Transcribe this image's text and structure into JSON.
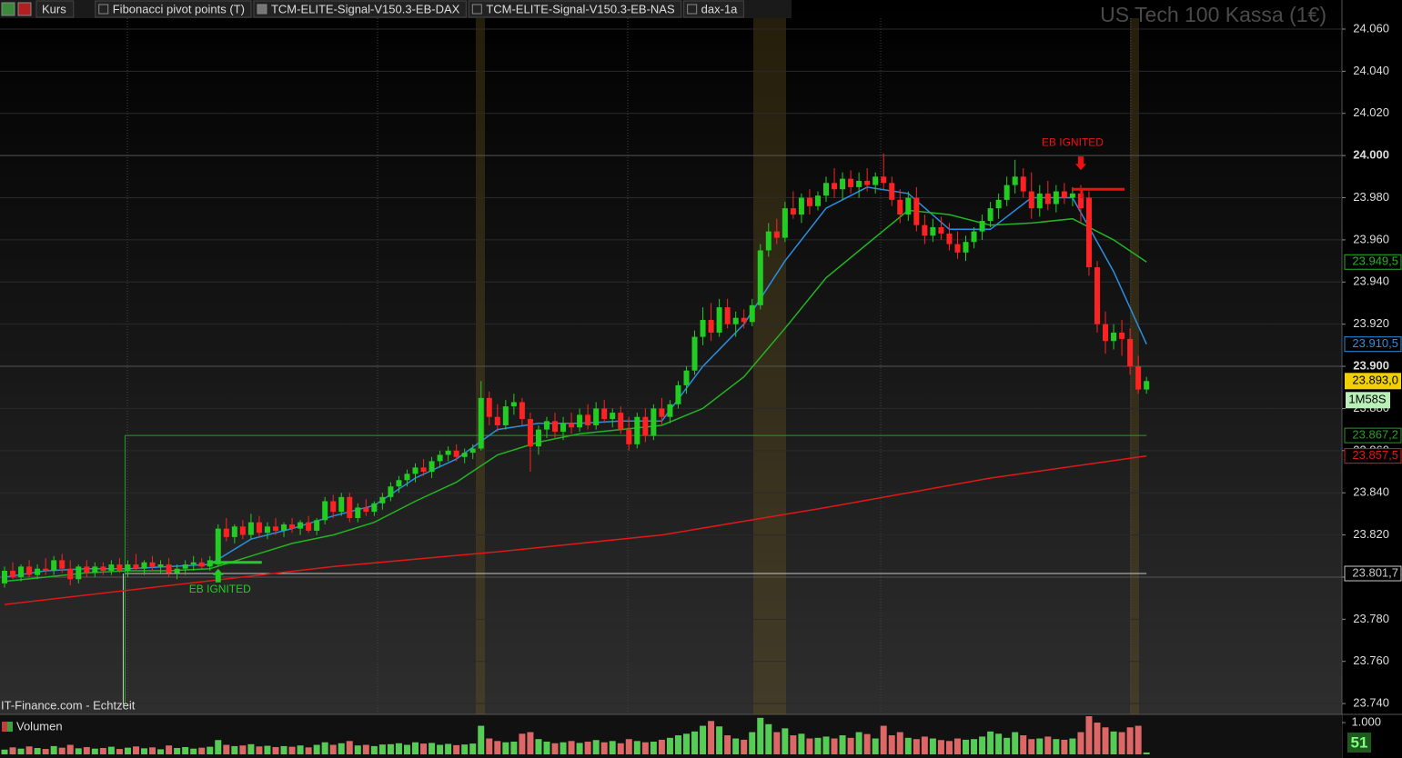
{
  "chart_data": {
    "type": "candlestick",
    "title": "US Tech 100 Kassa (1€)",
    "source": "IT-Finance.com - Echtzeit",
    "toolbar": [
      "Kurs",
      "Fibonacci pivot points (T)",
      "TCM-ELITE-Signal-V150.3-EB-DAX",
      "TCM-ELITE-Signal-V150.3-EB-NAS",
      "dax-1a"
    ],
    "ylim": [
      23735.3,
      24073.8
    ],
    "yticks": [
      {
        "value": 23740,
        "label": "23.740"
      },
      {
        "value": 23760,
        "label": "23.760"
      },
      {
        "value": 23780,
        "label": "23.780"
      },
      {
        "value": 23800,
        "label": "23.800"
      },
      {
        "value": 23820,
        "label": "23.820"
      },
      {
        "value": 23840,
        "label": "23.840"
      },
      {
        "value": 23860,
        "label": "23.860"
      },
      {
        "value": 23880,
        "label": "23.880"
      },
      {
        "value": 23900,
        "label": "23.900"
      },
      {
        "value": 23920,
        "label": "23.920"
      },
      {
        "value": 23940,
        "label": "23.940"
      },
      {
        "value": 23960,
        "label": "23.960"
      },
      {
        "value": 23980,
        "label": "23.980"
      },
      {
        "value": 24000,
        "label": "24.000"
      },
      {
        "value": 24020,
        "label": "24.020"
      },
      {
        "value": 24040,
        "label": "24.040"
      },
      {
        "value": 24060,
        "label": "24.060"
      }
    ],
    "up_color": "#22cc22",
    "down_color": "#ff2222",
    "last_label": "23.893,0",
    "countdown": "1M58S",
    "candles": [
      [
        23797,
        23805,
        23795,
        23803
      ],
      [
        23803,
        23807,
        23799,
        23800
      ],
      [
        23800,
        23806,
        23798,
        23805
      ],
      [
        23805,
        23808,
        23800,
        23801
      ],
      [
        23801,
        23806,
        23799,
        23804
      ],
      [
        23804,
        23809,
        23801,
        23803
      ],
      [
        23803,
        23810,
        23801,
        23808
      ],
      [
        23808,
        23811,
        23802,
        23804
      ],
      [
        23804,
        23808,
        23796,
        23799
      ],
      [
        23799,
        23806,
        23797,
        23805
      ],
      [
        23805,
        23808,
        23800,
        23802
      ],
      [
        23802,
        23807,
        23800,
        23805
      ],
      [
        23805,
        23807,
        23801,
        23803
      ],
      [
        23803,
        23808,
        23801,
        23806
      ],
      [
        23806,
        23809,
        23802,
        23803
      ],
      [
        23803,
        23808,
        23800,
        23806
      ],
      [
        23806,
        23811,
        23803,
        23804
      ],
      [
        23804,
        23808,
        23801,
        23807
      ],
      [
        23807,
        23810,
        23803,
        23805
      ],
      [
        23805,
        23808,
        23802,
        23806
      ],
      [
        23806,
        23809,
        23800,
        23802
      ],
      [
        23802,
        23806,
        23799,
        23804
      ],
      [
        23804,
        23808,
        23801,
        23806
      ],
      [
        23806,
        23810,
        23803,
        23807
      ],
      [
        23807,
        23809,
        23804,
        23805
      ],
      [
        23805,
        23810,
        23803,
        23808
      ],
      [
        23806,
        23825,
        23805,
        23823
      ],
      [
        23823,
        23828,
        23817,
        23819
      ],
      [
        23819,
        23825,
        23816,
        23824
      ],
      [
        23824,
        23827,
        23818,
        23820
      ],
      [
        23820,
        23830,
        23818,
        23826
      ],
      [
        23826,
        23829,
        23819,
        23821
      ],
      [
        23821,
        23826,
        23818,
        23824
      ],
      [
        23824,
        23828,
        23820,
        23822
      ],
      [
        23822,
        23826,
        23819,
        23825
      ],
      [
        23825,
        23828,
        23821,
        23823
      ],
      [
        23823,
        23827,
        23820,
        23826
      ],
      [
        23826,
        23829,
        23821,
        23822
      ],
      [
        23822,
        23828,
        23820,
        23827
      ],
      [
        23827,
        23838,
        23825,
        23836
      ],
      [
        23836,
        23839,
        23828,
        23831
      ],
      [
        23831,
        23840,
        23829,
        23838
      ],
      [
        23838,
        23840,
        23826,
        23828
      ],
      [
        23828,
        23835,
        23826,
        23833
      ],
      [
        23833,
        23837,
        23829,
        23831
      ],
      [
        23831,
        23836,
        23829,
        23835
      ],
      [
        23835,
        23840,
        23832,
        23838
      ],
      [
        23838,
        23845,
        23836,
        23843
      ],
      [
        23843,
        23848,
        23840,
        23846
      ],
      [
        23846,
        23851,
        23843,
        23849
      ],
      [
        23849,
        23854,
        23845,
        23852
      ],
      [
        23852,
        23856,
        23848,
        23850
      ],
      [
        23850,
        23857,
        23847,
        23855
      ],
      [
        23855,
        23860,
        23852,
        23858
      ],
      [
        23858,
        23862,
        23855,
        23860
      ],
      [
        23860,
        23863,
        23855,
        23857
      ],
      [
        23857,
        23861,
        23854,
        23859
      ],
      [
        23859,
        23863,
        23856,
        23861
      ],
      [
        23861,
        23893,
        23860,
        23885
      ],
      [
        23885,
        23888,
        23872,
        23876
      ],
      [
        23876,
        23882,
        23869,
        23872
      ],
      [
        23872,
        23884,
        23870,
        23881
      ],
      [
        23881,
        23887,
        23877,
        23883
      ],
      [
        23883,
        23885,
        23872,
        23875
      ],
      [
        23875,
        23878,
        23850,
        23862
      ],
      [
        23862,
        23872,
        23858,
        23870
      ],
      [
        23870,
        23876,
        23866,
        23874
      ],
      [
        23874,
        23878,
        23866,
        23869
      ],
      [
        23869,
        23876,
        23865,
        23873
      ],
      [
        23873,
        23878,
        23868,
        23871
      ],
      [
        23871,
        23880,
        23869,
        23877
      ],
      [
        23877,
        23882,
        23870,
        23872
      ],
      [
        23872,
        23883,
        23870,
        23880
      ],
      [
        23880,
        23884,
        23873,
        23875
      ],
      [
        23875,
        23880,
        23871,
        23878
      ],
      [
        23878,
        23881,
        23868,
        23870
      ],
      [
        23870,
        23876,
        23860,
        23863
      ],
      [
        23863,
        23878,
        23861,
        23876
      ],
      [
        23876,
        23880,
        23864,
        23867
      ],
      [
        23867,
        23882,
        23865,
        23880
      ],
      [
        23880,
        23885,
        23872,
        23876
      ],
      [
        23876,
        23884,
        23873,
        23882
      ],
      [
        23882,
        23893,
        23880,
        23891
      ],
      [
        23891,
        23900,
        23887,
        23898
      ],
      [
        23898,
        23917,
        23896,
        23914
      ],
      [
        23914,
        23928,
        23910,
        23922
      ],
      [
        23922,
        23930,
        23912,
        23916
      ],
      [
        23916,
        23932,
        23914,
        23928
      ],
      [
        23928,
        23932,
        23918,
        23920
      ],
      [
        23920,
        23926,
        23914,
        23923
      ],
      [
        23923,
        23927,
        23918,
        23921
      ],
      [
        23921,
        23932,
        23919,
        23929
      ],
      [
        23929,
        23958,
        23927,
        23955
      ],
      [
        23955,
        23968,
        23952,
        23964
      ],
      [
        23964,
        23970,
        23958,
        23961
      ],
      [
        23961,
        23978,
        23959,
        23975
      ],
      [
        23975,
        23983,
        23970,
        23972
      ],
      [
        23972,
        23982,
        23968,
        23980
      ],
      [
        23980,
        23984,
        23972,
        23976
      ],
      [
        23976,
        23983,
        23974,
        23981
      ],
      [
        23981,
        23990,
        23978,
        23987
      ],
      [
        23987,
        23994,
        23980,
        23984
      ],
      [
        23984,
        23992,
        23979,
        23989
      ],
      [
        23989,
        23993,
        23982,
        23985
      ],
      [
        23985,
        23992,
        23980,
        23988
      ],
      [
        23988,
        23994,
        23983,
        23986
      ],
      [
        23986,
        23992,
        23982,
        23990
      ],
      [
        23990,
        24001,
        23984,
        23987
      ],
      [
        23987,
        23990,
        23976,
        23979
      ],
      [
        23979,
        23984,
        23968,
        23972
      ],
      [
        23972,
        23983,
        23969,
        23980
      ],
      [
        23980,
        23985,
        23964,
        23967
      ],
      [
        23967,
        23972,
        23958,
        23962
      ],
      [
        23962,
        23970,
        23959,
        23966
      ],
      [
        23966,
        23971,
        23960,
        23963
      ],
      [
        23963,
        23968,
        23955,
        23958
      ],
      [
        23958,
        23964,
        23951,
        23954
      ],
      [
        23954,
        23962,
        23950,
        23959
      ],
      [
        23959,
        23966,
        23956,
        23964
      ],
      [
        23964,
        23972,
        23960,
        23969
      ],
      [
        23969,
        23978,
        23966,
        23975
      ],
      [
        23975,
        23982,
        23970,
        23979
      ],
      [
        23979,
        23990,
        23976,
        23986
      ],
      [
        23986,
        23998,
        23982,
        23990
      ],
      [
        23990,
        23994,
        23980,
        23983
      ],
      [
        23983,
        23992,
        23970,
        23975
      ],
      [
        23975,
        23986,
        23971,
        23982
      ],
      [
        23982,
        23988,
        23974,
        23977
      ],
      [
        23977,
        23986,
        23973,
        23983
      ],
      [
        23983,
        23987,
        23977,
        23980
      ],
      [
        23980,
        23985,
        23976,
        23982
      ],
      [
        23982,
        23986,
        23968,
        23975
      ],
      [
        23980,
        23983,
        23943,
        23947
      ],
      [
        23947,
        23950,
        23916,
        23920
      ],
      [
        23920,
        23926,
        23906,
        23912
      ],
      [
        23912,
        23920,
        23908,
        23916
      ],
      [
        23916,
        23922,
        23905,
        23913
      ],
      [
        23913,
        23918,
        23896,
        23900
      ],
      [
        23900,
        23905,
        23887,
        23889
      ],
      [
        23889,
        23895,
        23887,
        23893
      ]
    ],
    "series": [
      {
        "color": "#2a8fe0",
        "end_label": "23.910,5",
        "x": [
          0,
          5,
          10,
          15,
          20,
          25,
          30,
          35,
          40,
          45,
          50,
          55,
          60,
          65,
          70,
          75,
          80,
          85,
          90,
          95,
          100,
          105,
          110,
          115,
          120,
          125,
          130,
          135,
          139
        ],
        "values": [
          23800,
          23803,
          23804,
          23804,
          23805,
          23806,
          23818,
          23823,
          23829,
          23834,
          23847,
          23856,
          23870,
          23873,
          23873,
          23874,
          23874,
          23900,
          23920,
          23950,
          23975,
          23985,
          23982,
          23965,
          23965,
          23980,
          23980,
          23945,
          23910.5
        ]
      },
      {
        "color": "#22b422",
        "end_label": "23.949,5",
        "x": [
          0,
          5,
          10,
          15,
          20,
          25,
          30,
          35,
          40,
          45,
          50,
          55,
          60,
          65,
          70,
          75,
          80,
          85,
          90,
          95,
          100,
          105,
          110,
          115,
          120,
          125,
          130,
          135,
          139
        ],
        "values": [
          23798,
          23800,
          23802,
          23803,
          23803,
          23804,
          23810,
          23816,
          23820,
          23826,
          23836,
          23845,
          23858,
          23864,
          23868,
          23870,
          23872,
          23880,
          23895,
          23918,
          23942,
          23958,
          23974,
          23972,
          23967,
          23968,
          23970,
          23960,
          23949.5
        ]
      },
      {
        "color": "#e01818",
        "end_label": "23.857,5",
        "x": [
          0,
          20,
          40,
          60,
          80,
          100,
          120,
          139
        ],
        "values": [
          23787,
          23796,
          23805,
          23812,
          23820,
          23833,
          23847,
          23857.5
        ]
      }
    ],
    "levels": [
      {
        "value": 23867.2,
        "label": "23.867,2",
        "color": "#22a022",
        "from": 15
      },
      {
        "value": 23801.7,
        "label": "23.801,7",
        "color": "#c8c8c8",
        "from": 15
      }
    ],
    "signals": [
      {
        "text": "EB IGNITED",
        "x": 26,
        "price": 23807,
        "color": "#22cc22",
        "direction": "up"
      },
      {
        "text": "EB IGNITED",
        "x": 131,
        "price": 23984,
        "color": "#ee1111",
        "direction": "down"
      }
    ],
    "volume": {
      "label": "Volumen",
      "badge": "51",
      "ylim": [
        0,
        1230
      ],
      "yticks": [
        {
          "value": 1000,
          "label": "1.000"
        }
      ],
      "values": [
        150,
        220,
        180,
        250,
        200,
        170,
        260,
        210,
        300,
        190,
        230,
        180,
        200,
        240,
        170,
        210,
        250,
        190,
        220,
        160,
        280,
        200,
        230,
        180,
        210,
        240,
        450,
        300,
        260,
        280,
        320,
        250,
        270,
        230,
        260,
        240,
        280,
        220,
        300,
        380,
        300,
        350,
        420,
        280,
        300,
        260,
        310,
        320,
        350,
        300,
        380,
        340,
        360,
        300,
        330,
        290,
        310,
        340,
        900,
        500,
        420,
        380,
        400,
        650,
        700,
        480,
        400,
        350,
        380,
        420,
        360,
        400,
        450,
        380,
        420,
        350,
        480,
        420,
        380,
        400,
        460,
        520,
        600,
        650,
        720,
        900,
        1050,
        880,
        600,
        500,
        460,
        700,
        1150,
        950,
        700,
        820,
        600,
        650,
        500,
        520,
        560,
        500,
        600,
        520,
        700,
        640,
        500,
        900,
        600,
        700,
        520,
        480,
        560,
        500,
        450,
        420,
        500,
        460,
        480,
        560,
        720,
        650,
        520,
        700,
        600,
        480,
        500,
        560,
        480,
        460,
        500,
        700,
        1200,
        1000,
        850,
        720,
        700,
        850,
        900,
        60
      ]
    }
  }
}
